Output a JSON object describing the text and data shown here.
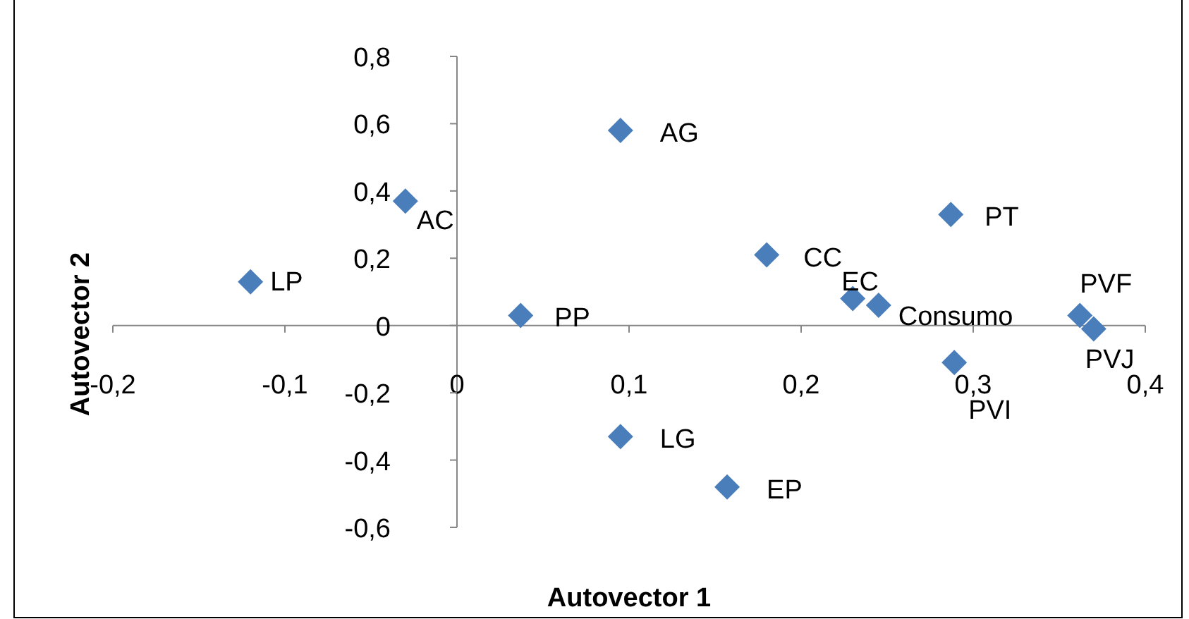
{
  "chart_data": {
    "type": "scatter",
    "xlabel": "Autovector 1",
    "ylabel": "Autovector 2",
    "xlim": [
      -0.2,
      0.4
    ],
    "ylim": [
      -0.6,
      0.8
    ],
    "xticks": [
      {
        "value": -0.2,
        "label": "-0,2"
      },
      {
        "value": -0.1,
        "label": "-0,1"
      },
      0,
      {
        "value": 0.1,
        "label": "0,1"
      },
      {
        "value": 0.2,
        "label": "0,2"
      },
      {
        "value": 0.3,
        "label": "0,3"
      },
      {
        "value": 0.4,
        "label": "0,4"
      }
    ],
    "yticks": [
      {
        "value": -0.6,
        "label": "-0,6"
      },
      {
        "value": -0.4,
        "label": "-0,4"
      },
      {
        "value": -0.2,
        "label": "-0,2"
      },
      0,
      {
        "value": 0.2,
        "label": "0,2"
      },
      {
        "value": 0.4,
        "label": "0,4"
      },
      {
        "value": 0.6,
        "label": "0,6"
      },
      {
        "value": 0.8,
        "label": "0,8"
      }
    ],
    "x": [
      -0.12,
      -0.03,
      0.095,
      0.037,
      0.18,
      0.23,
      0.245,
      0.287,
      0.362,
      0.37,
      0.289,
      0.095,
      0.157
    ],
    "values": [
      0.13,
      0.37,
      0.58,
      0.03,
      0.21,
      0.08,
      0.06,
      0.33,
      0.03,
      -0.01,
      -0.11,
      -0.33,
      -0.48
    ],
    "color": "#4a7ebb",
    "marker": "diamond",
    "grid": false,
    "annotations": [
      {
        "text": "LP",
        "x": -0.12,
        "y": 0.13
      },
      {
        "text": "AC",
        "x": -0.03,
        "y": 0.37
      },
      {
        "text": "AG",
        "x": 0.095,
        "y": 0.58
      },
      {
        "text": "PP",
        "x": 0.037,
        "y": 0.03
      },
      {
        "text": "CC",
        "x": 0.18,
        "y": 0.21
      },
      {
        "text": "EC",
        "x": 0.23,
        "y": 0.08
      },
      {
        "text": "Consumo",
        "x": 0.245,
        "y": 0.06
      },
      {
        "text": "PT",
        "x": 0.287,
        "y": 0.33
      },
      {
        "text": "PVF",
        "x": 0.362,
        "y": 0.03
      },
      {
        "text": "PVJ",
        "x": 0.37,
        "y": -0.01
      },
      {
        "text": "PVI",
        "x": 0.289,
        "y": -0.11
      },
      {
        "text": "LG",
        "x": 0.095,
        "y": -0.33
      },
      {
        "text": "EP",
        "x": 0.157,
        "y": -0.48
      }
    ]
  }
}
